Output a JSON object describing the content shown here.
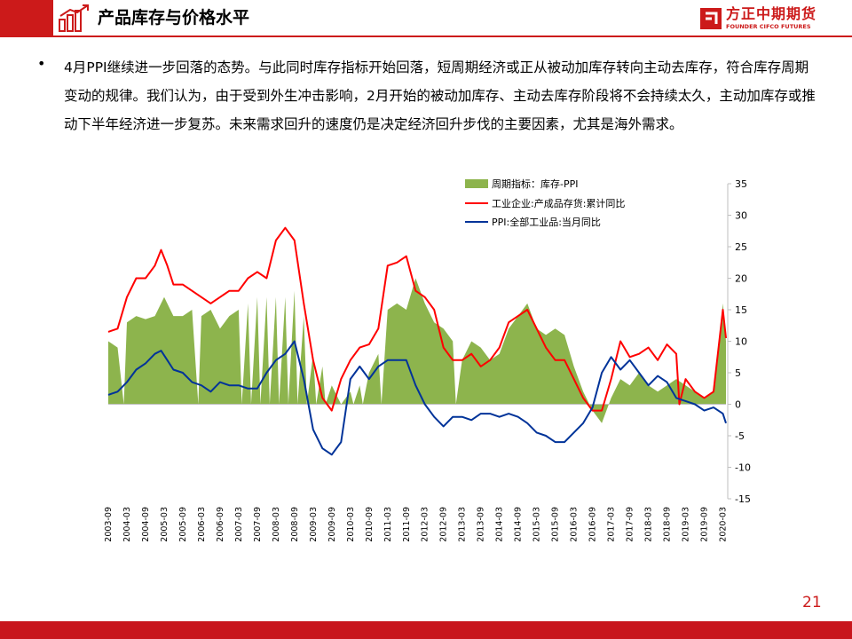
{
  "header": {
    "title": "产品库存与价格水平",
    "logo_cn": "方正中期期货",
    "logo_en": "FOUNDER CIFCO FUTURES",
    "brand_color": "#cc1a1a"
  },
  "body": {
    "bullet": "4月PPI继续进一步回落的态势。与此同时库存指标开始回落，短周期经济或正从被动加库存转向主动去库存，符合库存周期变动的规律。我们认为，由于受到外生冲击影响，2月开始的被动加库存、主动去库存阶段将不会持续太久，主动加库存或推动下半年经济进一步复苏。未来需求回升的速度仍是决定经济回升步伐的主要因素，尤其是海外需求。"
  },
  "page_number": "21",
  "chart_data": {
    "type": "line",
    "title": "",
    "xlabel": "",
    "ylabel": "",
    "ylim": [
      -15,
      35
    ],
    "yticks": [
      35,
      30,
      25,
      20,
      15,
      10,
      5,
      0,
      -5,
      -10,
      -15
    ],
    "y_axis_position": "right",
    "legend_position": "top",
    "grid": false,
    "x_range": [
      "2003-09",
      "2020-04"
    ],
    "xtick_labels": [
      "2003-09",
      "2004-03",
      "2004-09",
      "2005-03",
      "2005-09",
      "2006-03",
      "2006-09",
      "2007-03",
      "2007-09",
      "2008-03",
      "2008-09",
      "2009-03",
      "2009-09",
      "2010-03",
      "2010-09",
      "2011-03",
      "2011-09",
      "2012-03",
      "2012-09",
      "2013-03",
      "2013-09",
      "2014-03",
      "2014-09",
      "2015-03",
      "2015-09",
      "2016-03",
      "2016-09",
      "2017-03",
      "2017-09",
      "2018-03",
      "2018-09",
      "2019-03",
      "2019-09",
      "2020-03"
    ],
    "series": [
      {
        "name": "周期指标：库存-PPI",
        "kind": "area",
        "color": "#8db44d",
        "points": [
          [
            "2003-09",
            10
          ],
          [
            "2003-12",
            9
          ],
          [
            "2004-02",
            0
          ],
          [
            "2004-03",
            13
          ],
          [
            "2004-06",
            14
          ],
          [
            "2004-09",
            13.5
          ],
          [
            "2004-12",
            14
          ],
          [
            "2005-03",
            17
          ],
          [
            "2005-06",
            14
          ],
          [
            "2005-09",
            14
          ],
          [
            "2005-12",
            15
          ],
          [
            "2006-02",
            0
          ],
          [
            "2006-03",
            14
          ],
          [
            "2006-06",
            15
          ],
          [
            "2006-09",
            12
          ],
          [
            "2006-12",
            14
          ],
          [
            "2007-03",
            15
          ],
          [
            "2007-04",
            0
          ],
          [
            "2007-06",
            16
          ],
          [
            "2007-07",
            0
          ],
          [
            "2007-09",
            17
          ],
          [
            "2007-10",
            0
          ],
          [
            "2007-12",
            17
          ],
          [
            "2008-01",
            0
          ],
          [
            "2008-03",
            17
          ],
          [
            "2008-04",
            0
          ],
          [
            "2008-06",
            17
          ],
          [
            "2008-07",
            0
          ],
          [
            "2008-09",
            18
          ],
          [
            "2008-10",
            0
          ],
          [
            "2008-12",
            14
          ],
          [
            "2009-01",
            0
          ],
          [
            "2009-03",
            8
          ],
          [
            "2009-04",
            0
          ],
          [
            "2009-06",
            6
          ],
          [
            "2009-07",
            0
          ],
          [
            "2009-09",
            3
          ],
          [
            "2009-12",
            0
          ],
          [
            "2010-03",
            2
          ],
          [
            "2010-04",
            0
          ],
          [
            "2010-06",
            3
          ],
          [
            "2010-07",
            0
          ],
          [
            "2010-09",
            5
          ],
          [
            "2010-12",
            8
          ],
          [
            "2011-01",
            0
          ],
          [
            "2011-03",
            15
          ],
          [
            "2011-06",
            16
          ],
          [
            "2011-09",
            15
          ],
          [
            "2011-12",
            20
          ],
          [
            "2012-03",
            16
          ],
          [
            "2012-06",
            13
          ],
          [
            "2012-09",
            12
          ],
          [
            "2012-12",
            10
          ],
          [
            "2013-01",
            0
          ],
          [
            "2013-03",
            7
          ],
          [
            "2013-06",
            10
          ],
          [
            "2013-09",
            9
          ],
          [
            "2013-12",
            7
          ],
          [
            "2014-03",
            8
          ],
          [
            "2014-06",
            12
          ],
          [
            "2014-09",
            14
          ],
          [
            "2014-12",
            16
          ],
          [
            "2015-03",
            12
          ],
          [
            "2015-06",
            11
          ],
          [
            "2015-09",
            12
          ],
          [
            "2015-12",
            11
          ],
          [
            "2016-03",
            6
          ],
          [
            "2016-06",
            2
          ],
          [
            "2016-09",
            -1
          ],
          [
            "2016-12",
            -3
          ],
          [
            "2017-03",
            1
          ],
          [
            "2017-06",
            4
          ],
          [
            "2017-09",
            3
          ],
          [
            "2017-12",
            5
          ],
          [
            "2018-03",
            3
          ],
          [
            "2018-06",
            2
          ],
          [
            "2018-09",
            3
          ],
          [
            "2018-12",
            4
          ],
          [
            "2019-03",
            3
          ],
          [
            "2019-06",
            2
          ],
          [
            "2019-09",
            1
          ],
          [
            "2019-12",
            2
          ],
          [
            "2020-03",
            16
          ],
          [
            "2020-04",
            10
          ]
        ]
      },
      {
        "name": "工业企业:产成品存货:累计同比",
        "kind": "line",
        "color": "#ff0000",
        "points": [
          [
            "2003-09",
            11.5
          ],
          [
            "2003-12",
            12
          ],
          [
            "2004-03",
            17
          ],
          [
            "2004-06",
            20
          ],
          [
            "2004-09",
            20
          ],
          [
            "2004-12",
            22
          ],
          [
            "2005-02",
            24.5
          ],
          [
            "2005-04",
            22
          ],
          [
            "2005-06",
            19
          ],
          [
            "2005-09",
            19
          ],
          [
            "2005-12",
            18
          ],
          [
            "2006-03",
            17
          ],
          [
            "2006-06",
            16
          ],
          [
            "2006-09",
            17
          ],
          [
            "2006-12",
            18
          ],
          [
            "2007-03",
            18
          ],
          [
            "2007-06",
            20
          ],
          [
            "2007-09",
            21
          ],
          [
            "2007-12",
            20
          ],
          [
            "2008-03",
            26
          ],
          [
            "2008-06",
            28
          ],
          [
            "2008-09",
            26
          ],
          [
            "2008-12",
            16
          ],
          [
            "2009-03",
            7
          ],
          [
            "2009-06",
            1
          ],
          [
            "2009-09",
            -1
          ],
          [
            "2009-12",
            4
          ],
          [
            "2010-03",
            7
          ],
          [
            "2010-06",
            9
          ],
          [
            "2010-09",
            9.5
          ],
          [
            "2010-12",
            12
          ],
          [
            "2011-03",
            22
          ],
          [
            "2011-06",
            22.5
          ],
          [
            "2011-09",
            23.5
          ],
          [
            "2011-12",
            18
          ],
          [
            "2012-03",
            17
          ],
          [
            "2012-06",
            15
          ],
          [
            "2012-09",
            9
          ],
          [
            "2012-12",
            7
          ],
          [
            "2013-03",
            7
          ],
          [
            "2013-06",
            8
          ],
          [
            "2013-09",
            6
          ],
          [
            "2013-12",
            7
          ],
          [
            "2014-03",
            9
          ],
          [
            "2014-06",
            13
          ],
          [
            "2014-09",
            14
          ],
          [
            "2014-12",
            15
          ],
          [
            "2015-03",
            12
          ],
          [
            "2015-06",
            9
          ],
          [
            "2015-09",
            7
          ],
          [
            "2015-12",
            7
          ],
          [
            "2016-03",
            4
          ],
          [
            "2016-06",
            1
          ],
          [
            "2016-09",
            -1
          ],
          [
            "2016-12",
            -1
          ],
          [
            "2017-03",
            4
          ],
          [
            "2017-06",
            10
          ],
          [
            "2017-09",
            7.5
          ],
          [
            "2017-12",
            8
          ],
          [
            "2018-03",
            9
          ],
          [
            "2018-06",
            7
          ],
          [
            "2018-09",
            9.5
          ],
          [
            "2018-12",
            8
          ],
          [
            "2019-01",
            0
          ],
          [
            "2019-03",
            4
          ],
          [
            "2019-06",
            2
          ],
          [
            "2019-09",
            1
          ],
          [
            "2019-12",
            2
          ],
          [
            "2020-03",
            15
          ],
          [
            "2020-04",
            10.5
          ]
        ]
      },
      {
        "name": "PPI:全部工业品:当月同比",
        "kind": "line",
        "color": "#003399",
        "points": [
          [
            "2003-09",
            1.5
          ],
          [
            "2003-12",
            2
          ],
          [
            "2004-03",
            3.5
          ],
          [
            "2004-06",
            5.5
          ],
          [
            "2004-09",
            6.5
          ],
          [
            "2004-12",
            8
          ],
          [
            "2005-02",
            8.5
          ],
          [
            "2005-04",
            7
          ],
          [
            "2005-06",
            5.5
          ],
          [
            "2005-09",
            5
          ],
          [
            "2005-12",
            3.5
          ],
          [
            "2006-03",
            3
          ],
          [
            "2006-06",
            2
          ],
          [
            "2006-09",
            3.5
          ],
          [
            "2006-12",
            3
          ],
          [
            "2007-03",
            3
          ],
          [
            "2007-06",
            2.5
          ],
          [
            "2007-09",
            2.5
          ],
          [
            "2007-12",
            5
          ],
          [
            "2008-03",
            7
          ],
          [
            "2008-06",
            8
          ],
          [
            "2008-09",
            10
          ],
          [
            "2008-12",
            4
          ],
          [
            "2009-03",
            -4
          ],
          [
            "2009-06",
            -7
          ],
          [
            "2009-09",
            -8
          ],
          [
            "2009-12",
            -6
          ],
          [
            "2010-03",
            4
          ],
          [
            "2010-06",
            6
          ],
          [
            "2010-09",
            4
          ],
          [
            "2010-12",
            6
          ],
          [
            "2011-03",
            7
          ],
          [
            "2011-06",
            7
          ],
          [
            "2011-09",
            7
          ],
          [
            "2011-12",
            3
          ],
          [
            "2012-03",
            0
          ],
          [
            "2012-06",
            -2
          ],
          [
            "2012-09",
            -3.5
          ],
          [
            "2012-12",
            -2
          ],
          [
            "2013-03",
            -2
          ],
          [
            "2013-06",
            -2.5
          ],
          [
            "2013-09",
            -1.5
          ],
          [
            "2013-12",
            -1.5
          ],
          [
            "2014-03",
            -2
          ],
          [
            "2014-06",
            -1.5
          ],
          [
            "2014-09",
            -2
          ],
          [
            "2014-12",
            -3
          ],
          [
            "2015-03",
            -4.5
          ],
          [
            "2015-06",
            -5
          ],
          [
            "2015-09",
            -6
          ],
          [
            "2015-12",
            -6
          ],
          [
            "2016-03",
            -4.5
          ],
          [
            "2016-06",
            -3
          ],
          [
            "2016-09",
            -0.5
          ],
          [
            "2016-12",
            5
          ],
          [
            "2017-03",
            7.5
          ],
          [
            "2017-06",
            5.5
          ],
          [
            "2017-09",
            7
          ],
          [
            "2017-12",
            5
          ],
          [
            "2018-03",
            3
          ],
          [
            "2018-06",
            4.5
          ],
          [
            "2018-09",
            3.5
          ],
          [
            "2018-12",
            1
          ],
          [
            "2019-03",
            0.5
          ],
          [
            "2019-06",
            0
          ],
          [
            "2019-09",
            -1
          ],
          [
            "2019-12",
            -0.5
          ],
          [
            "2020-03",
            -1.5
          ],
          [
            "2020-04",
            -3
          ]
        ]
      }
    ]
  }
}
